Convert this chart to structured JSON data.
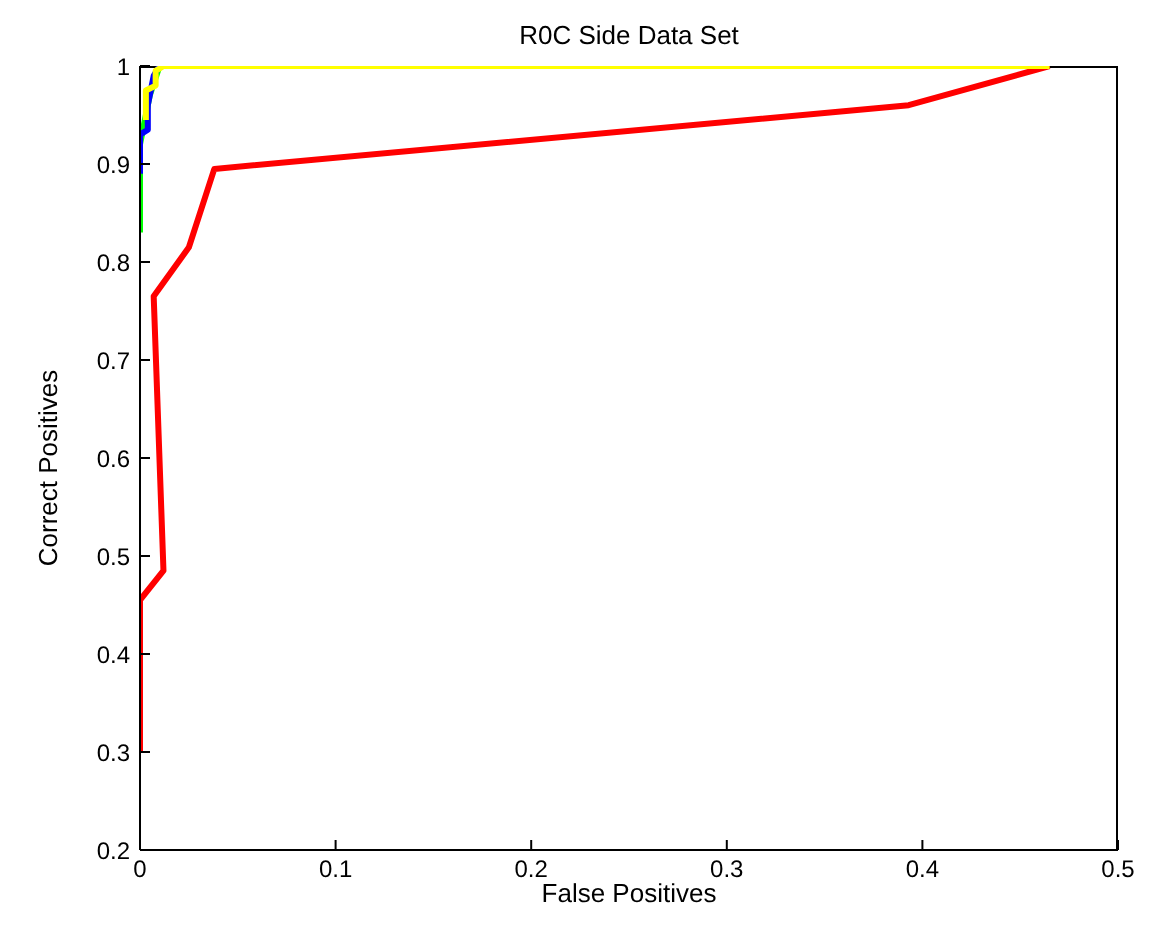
{
  "chart_data": {
    "type": "line",
    "title": "R0C Side Data Set",
    "xlabel": "False Positives",
    "ylabel": "Correct Positives",
    "xlim": [
      0,
      0.5
    ],
    "ylim": [
      0.2,
      1
    ],
    "xticks": [
      0,
      0.1,
      0.2,
      0.3,
      0.4,
      0.5
    ],
    "yticks": [
      0.2,
      0.3,
      0.4,
      0.5,
      0.6,
      0.7,
      0.8,
      0.9,
      1
    ],
    "grid": false,
    "marker": "none",
    "line_style": "solid",
    "series": [
      {
        "color": "#ff0000",
        "x": [
          0,
          0,
          0.012,
          0.007,
          0.025,
          0.038,
          0.393,
          0.465
        ],
        "values": [
          0.3,
          0.455,
          0.485,
          0.765,
          0.815,
          0.895,
          0.96,
          1
        ]
      },
      {
        "color": "#00ff00",
        "x": [
          0,
          0,
          0.005,
          0.01
        ],
        "values": [
          0.83,
          0.92,
          0.97,
          1
        ]
      },
      {
        "color": "#0000ff",
        "x": [
          0,
          0,
          0.004,
          0.004,
          0.007,
          0.01
        ],
        "values": [
          0.89,
          0.93,
          0.935,
          0.96,
          0.99,
          1
        ]
      },
      {
        "color": "#ffff00",
        "x": [
          0.003,
          0.003,
          0.008,
          0.008,
          0.012,
          0.465
        ],
        "values": [
          0.945,
          0.975,
          0.98,
          0.995,
          1,
          1
        ]
      }
    ]
  }
}
